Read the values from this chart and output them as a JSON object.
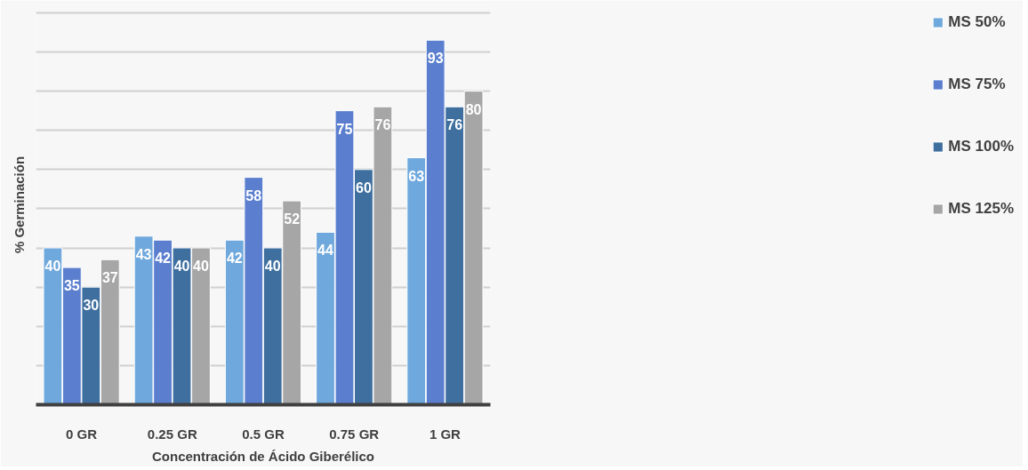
{
  "chart_data": {
    "type": "bar",
    "xlabel": "Concentración de Ácido Giberélico",
    "ylabel": "% Germinación",
    "categories": [
      "0 GR",
      "0.25 GR",
      "0.5 GR",
      "0.75 GR",
      "1 GR"
    ],
    "series": [
      {
        "name": "MS 50%",
        "color": "#6fa8dc",
        "values": [
          40,
          43,
          42,
          44,
          63
        ]
      },
      {
        "name": "MS 75%",
        "color": "#5b7fce",
        "values": [
          35,
          42,
          58,
          75,
          93
        ]
      },
      {
        "name": "MS 100%",
        "color": "#3e6f9e",
        "values": [
          30,
          40,
          40,
          60,
          76
        ]
      },
      {
        "name": "MS 125%",
        "color": "#a6a6a6",
        "values": [
          37,
          40,
          52,
          76,
          80
        ]
      }
    ],
    "ylim": [
      0,
      102
    ],
    "yticks": [
      {
        "value": 0,
        "label": null
      },
      {
        "value": 10,
        "label": null
      },
      {
        "value": 20,
        "label": null
      },
      {
        "value": 30,
        "label": null
      },
      {
        "value": 40,
        "label": null
      },
      {
        "value": 50,
        "label": null
      },
      {
        "value": 60,
        "label": null
      },
      {
        "value": 70,
        "label": null
      },
      {
        "value": 80,
        "label": null
      },
      {
        "value": 90,
        "label": null
      },
      {
        "value": 100,
        "label": null
      }
    ],
    "tick_labels": "x",
    "grid": "y",
    "legend": "right",
    "data_labels": true
  }
}
